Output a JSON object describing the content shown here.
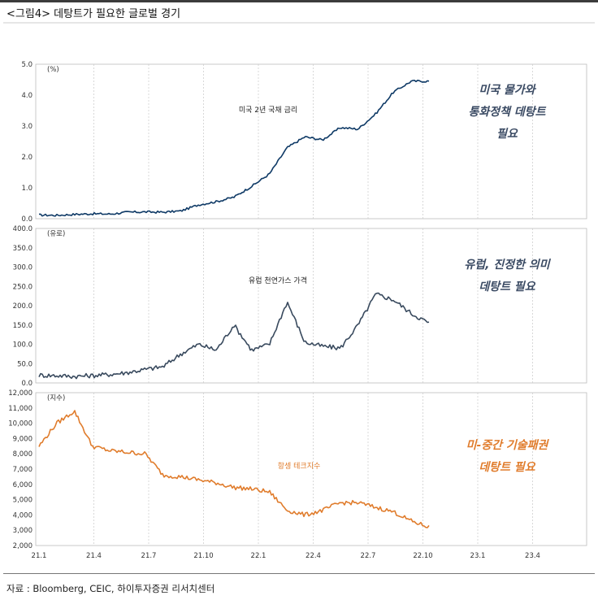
{
  "figure_title": "<그림4> 데탕트가 필요한 글로벌 경기",
  "source": "자료 : Bloomberg, CEIC, 하이투자증권 리서치센터",
  "colors": {
    "navy": "#0f3a66",
    "slate": "#394a5e",
    "orange": "#e07c2c",
    "grid": "#cfcfcf",
    "ann_blue": "#3a4a63",
    "ann_orange": "#e07c2c"
  },
  "annotations": [
    {
      "lines": [
        "미국 물가와",
        "통화정책 데탕트",
        "필요"
      ],
      "color": "#3a4a63"
    },
    {
      "lines": [
        "유럽, 진정한 의미",
        "데탕트 필요"
      ],
      "color": "#3a4a63"
    },
    {
      "lines": [
        "미-중간 기술패권",
        "데탕트 필요"
      ],
      "color": "#e07c2c"
    }
  ],
  "chart_data": [
    {
      "type": "line",
      "unit": "(%)",
      "x": [
        "21.1",
        "21.2",
        "21.3",
        "21.4",
        "21.5",
        "21.6",
        "21.7",
        "21.8",
        "21.9",
        "21.10",
        "21.11",
        "21.12",
        "22.1",
        "22.2",
        "22.3",
        "22.4",
        "22.5",
        "22.6",
        "22.7",
        "22.8",
        "22.9",
        "22.10",
        "22.10b"
      ],
      "series": [
        {
          "name": "미국 2년 국채 금리",
          "color": "#0f3a66",
          "values": [
            0.12,
            0.11,
            0.14,
            0.16,
            0.15,
            0.21,
            0.22,
            0.21,
            0.25,
            0.45,
            0.55,
            0.7,
            1.05,
            1.45,
            2.3,
            2.65,
            2.55,
            2.95,
            2.9,
            3.4,
            4.1,
            4.45,
            4.45
          ]
        }
      ],
      "ylim": [
        0,
        5
      ],
      "yticks": [
        "0.0",
        "1.0",
        "2.0",
        "3.0",
        "4.0",
        "5.0"
      ]
    },
    {
      "type": "line",
      "unit": "(유로)",
      "x": [
        "21.1",
        "21.2",
        "21.3",
        "21.4",
        "21.5",
        "21.6",
        "21.7",
        "21.8",
        "21.9",
        "21.10",
        "21.11",
        "21.12",
        "22.1",
        "22.2",
        "22.3",
        "22.4",
        "22.5",
        "22.6",
        "22.7",
        "22.8",
        "22.9",
        "22.10",
        "22.10b"
      ],
      "series": [
        {
          "name": "유럽 천연가스 가격",
          "color": "#394a5e",
          "values": [
            20,
            19,
            17,
            19,
            22,
            27,
            35,
            42,
            75,
            100,
            85,
            150,
            85,
            100,
            210,
            105,
            95,
            90,
            150,
            230,
            215,
            180,
            155
          ]
        }
      ],
      "ylim": [
        0,
        400
      ],
      "yticks": [
        "0.0",
        "50.0",
        "100.0",
        "150.0",
        "200.0",
        "250.0",
        "300.0",
        "350.0",
        "400.0"
      ]
    },
    {
      "type": "line",
      "unit": "(지수)",
      "x": [
        "21.1",
        "21.2",
        "21.3",
        "21.4",
        "21.5",
        "21.6",
        "21.7",
        "21.8",
        "21.9",
        "21.10",
        "21.11",
        "21.12",
        "22.1",
        "22.2",
        "22.3",
        "22.4",
        "22.5",
        "22.6",
        "22.7",
        "22.8",
        "22.9",
        "22.10",
        "22.10b"
      ],
      "series": [
        {
          "name": "항셍 테크지수",
          "color": "#e07c2c",
          "values": [
            8500,
            10000,
            10800,
            8500,
            8200,
            8100,
            8000,
            6600,
            6500,
            6300,
            6100,
            5800,
            5700,
            5500,
            4300,
            4000,
            4300,
            4800,
            4800,
            4500,
            4200,
            3600,
            3200
          ]
        }
      ],
      "ylim": [
        2000,
        12000
      ],
      "yticks": [
        "2,000",
        "3,000",
        "4,000",
        "5,000",
        "6,000",
        "7,000",
        "8,000",
        "9,000",
        "10,000",
        "11,000",
        "12,000"
      ]
    }
  ],
  "x_axis_labels": [
    "21.1",
    "21.4",
    "21.7",
    "21.10",
    "22.1",
    "22.4",
    "22.7",
    "22.10",
    "23.1",
    "23.4"
  ]
}
